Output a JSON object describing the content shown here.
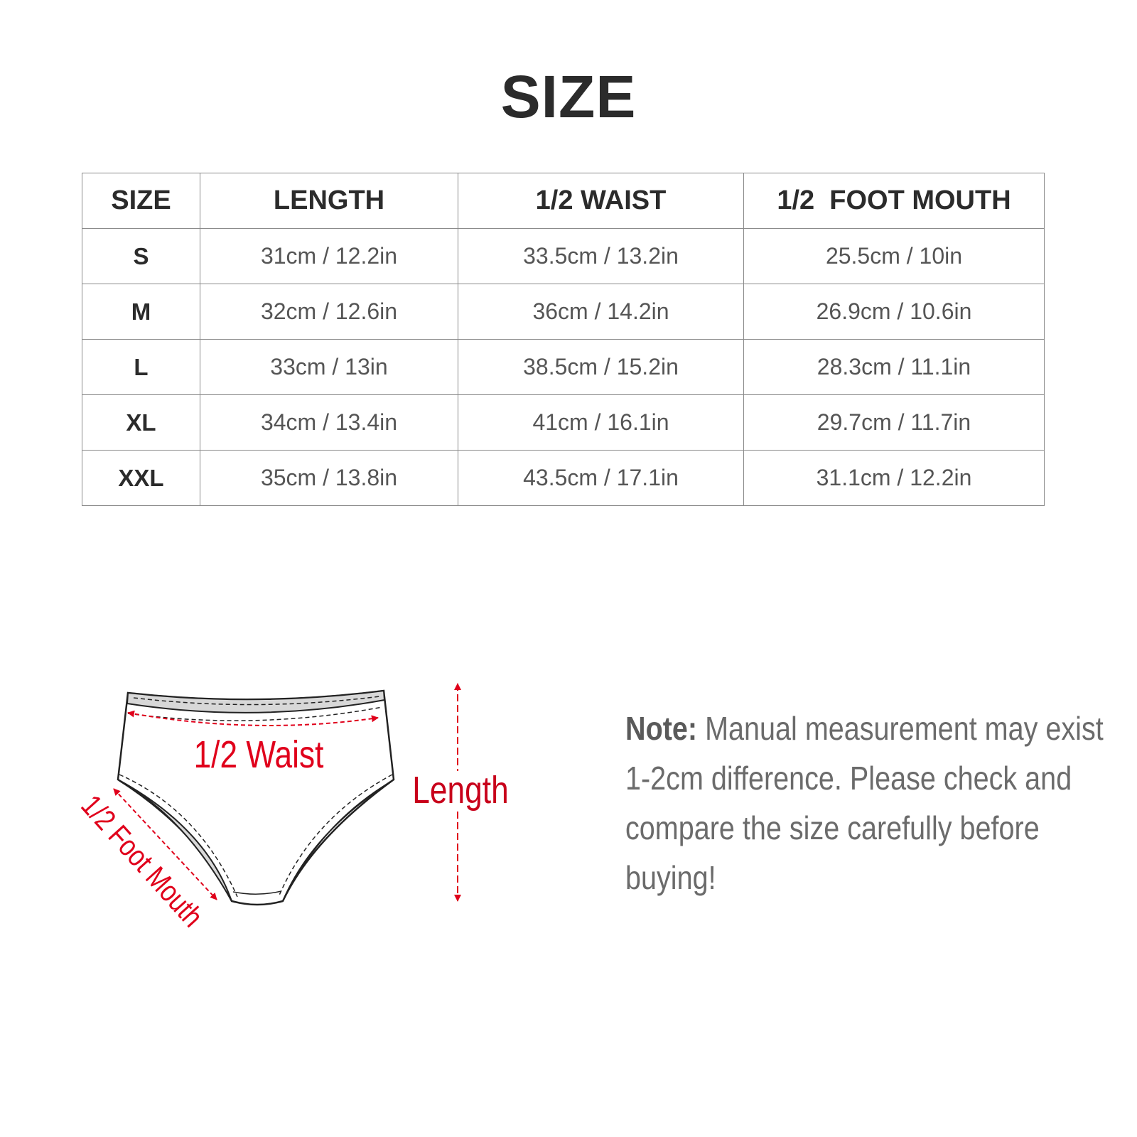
{
  "title": "SIZE",
  "table": {
    "headers": [
      "SIZE",
      "LENGTH",
      "1/2 WAIST",
      "1/2  FOOT MOUTH"
    ],
    "rows": [
      [
        "S",
        "31cm / 12.2in",
        "33.5cm / 13.2in",
        "25.5cm / 10in"
      ],
      [
        "M",
        "32cm / 12.6in",
        "36cm / 14.2in",
        "26.9cm / 10.6in"
      ],
      [
        "L",
        "33cm / 13in",
        "38.5cm / 15.2in",
        "28.3cm / 11.1in"
      ],
      [
        "XL",
        "34cm / 13.4in",
        "41cm / 16.1in",
        "29.7cm / 11.7in"
      ],
      [
        "XXL",
        "35cm / 13.8in",
        "43.5cm / 17.1in",
        "31.1cm / 12.2in"
      ]
    ]
  },
  "diagram": {
    "waist_label": "1/2 Waist",
    "length_label": "Length",
    "foot_mouth_label": "1/2 Foot Mouth",
    "accent_color": "#e0001b"
  },
  "note": {
    "label": "Note:",
    "text": " Manual measurement may exist 1-2cm difference. Please check and compare the size carefully before buying!"
  }
}
